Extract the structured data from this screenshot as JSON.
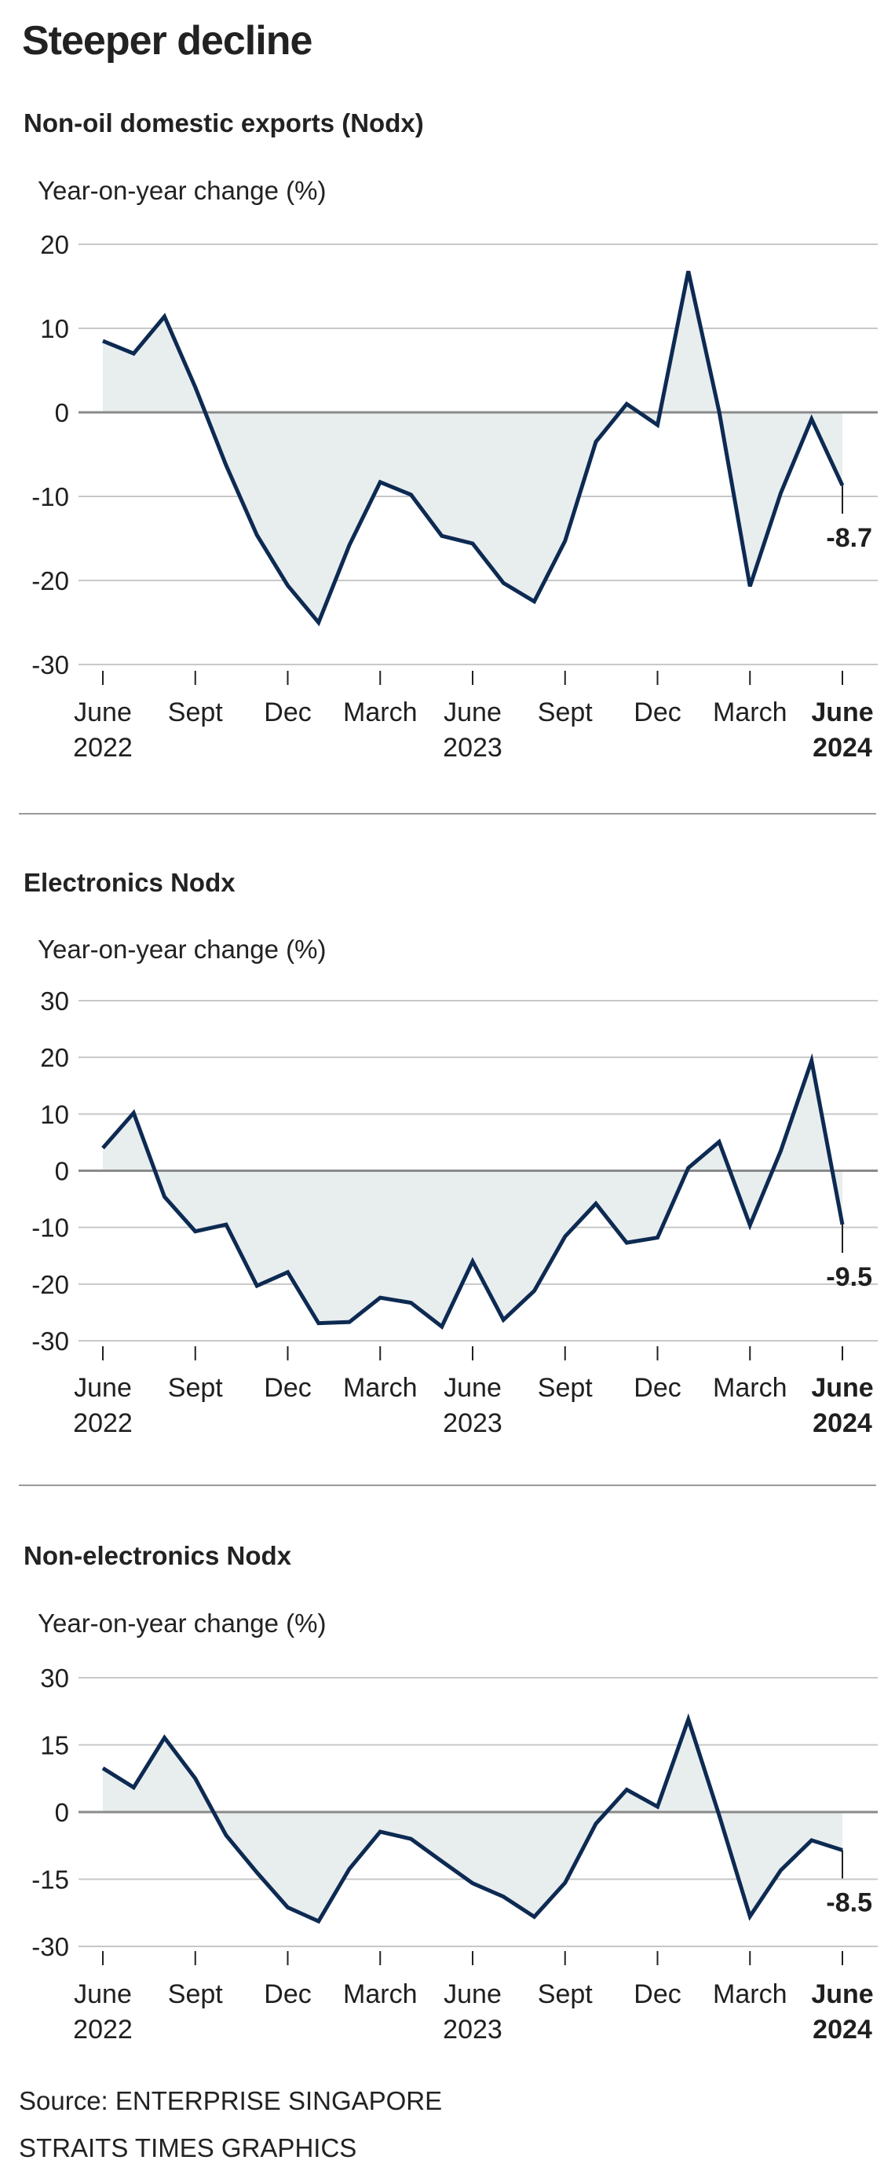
{
  "title": "Steeper decline",
  "source": "Source: ENTERPRISE SINGAPORE",
  "credit": "STRAITS TIMES GRAPHICS",
  "colors": {
    "line": "#0d2a52",
    "fill": "#e8edee",
    "grid": "#c8c8c8",
    "zero": "#8a8a8a"
  },
  "chart_data": [
    {
      "type": "area",
      "title": "Non-oil domestic exports (Nodx)",
      "ylabel": "Year-on-year change (%)",
      "ylim": [
        -30,
        20
      ],
      "yticks": [
        20,
        10,
        0,
        -10,
        -20,
        -30
      ],
      "x_ticks": [
        {
          "index": 0,
          "line1": "June",
          "line2": "2022",
          "bold": false
        },
        {
          "index": 3,
          "line1": "Sept",
          "line2": "",
          "bold": false
        },
        {
          "index": 6,
          "line1": "Dec",
          "line2": "",
          "bold": false
        },
        {
          "index": 9,
          "line1": "March",
          "line2": "",
          "bold": false
        },
        {
          "index": 12,
          "line1": "June",
          "line2": "2023",
          "bold": false
        },
        {
          "index": 15,
          "line1": "Sept",
          "line2": "",
          "bold": false
        },
        {
          "index": 18,
          "line1": "Dec",
          "line2": "",
          "bold": false
        },
        {
          "index": 21,
          "line1": "March",
          "line2": "",
          "bold": false
        },
        {
          "index": 24,
          "line1": "June",
          "line2": "2024",
          "bold": true
        }
      ],
      "values": [
        8.5,
        7.0,
        11.4,
        3.0,
        -6.3,
        -14.6,
        -20.6,
        -25.0,
        -15.8,
        -8.3,
        -9.8,
        -14.7,
        -15.6,
        -20.3,
        -22.5,
        -15.3,
        -3.5,
        1.0,
        -1.5,
        16.8,
        0.1,
        -20.7,
        -9.6,
        -0.8,
        -8.7
      ],
      "end_label": "-8.7"
    },
    {
      "type": "area",
      "title": "Electronics Nodx",
      "ylabel": "Year-on-year change (%)",
      "ylim": [
        -30,
        30
      ],
      "yticks": [
        30,
        20,
        10,
        0,
        -10,
        -20,
        -30
      ],
      "x_ticks": [
        {
          "index": 0,
          "line1": "June",
          "line2": "2022",
          "bold": false
        },
        {
          "index": 3,
          "line1": "Sept",
          "line2": "",
          "bold": false
        },
        {
          "index": 6,
          "line1": "Dec",
          "line2": "",
          "bold": false
        },
        {
          "index": 9,
          "line1": "March",
          "line2": "",
          "bold": false
        },
        {
          "index": 12,
          "line1": "June",
          "line2": "2023",
          "bold": false
        },
        {
          "index": 15,
          "line1": "Sept",
          "line2": "",
          "bold": false
        },
        {
          "index": 18,
          "line1": "Dec",
          "line2": "",
          "bold": false
        },
        {
          "index": 21,
          "line1": "March",
          "line2": "",
          "bold": false
        },
        {
          "index": 24,
          "line1": "June",
          "line2": "2024",
          "bold": true
        }
      ],
      "values": [
        4.0,
        10.2,
        -4.6,
        -10.7,
        -9.5,
        -20.3,
        -17.9,
        -26.9,
        -26.7,
        -22.4,
        -23.3,
        -27.5,
        -16.0,
        -26.3,
        -21.2,
        -11.6,
        -5.8,
        -12.7,
        -11.8,
        0.5,
        5.1,
        -9.6,
        3.5,
        19.4,
        -9.5
      ],
      "end_label": "-9.5"
    },
    {
      "type": "area",
      "title": "Non-electronics Nodx",
      "ylabel": "Year-on-year change (%)",
      "ylim": [
        -30,
        30
      ],
      "yticks": [
        30,
        15,
        0,
        -15,
        -30
      ],
      "x_ticks": [
        {
          "index": 0,
          "line1": "June",
          "line2": "2022",
          "bold": false
        },
        {
          "index": 3,
          "line1": "Sept",
          "line2": "",
          "bold": false
        },
        {
          "index": 6,
          "line1": "Dec",
          "line2": "",
          "bold": false
        },
        {
          "index": 9,
          "line1": "March",
          "line2": "",
          "bold": false
        },
        {
          "index": 12,
          "line1": "June",
          "line2": "2023",
          "bold": false
        },
        {
          "index": 15,
          "line1": "Sept",
          "line2": "",
          "bold": false
        },
        {
          "index": 18,
          "line1": "Dec",
          "line2": "",
          "bold": false
        },
        {
          "index": 21,
          "line1": "March",
          "line2": "",
          "bold": false
        },
        {
          "index": 24,
          "line1": "June",
          "line2": "2024",
          "bold": true
        }
      ],
      "values": [
        9.8,
        5.5,
        16.6,
        7.5,
        -5.2,
        -13.5,
        -21.3,
        -24.4,
        -12.7,
        -4.4,
        -6.0,
        -11.0,
        -15.9,
        -18.9,
        -23.4,
        -15.8,
        -2.6,
        5.0,
        1.2,
        20.7,
        -0.7,
        -23.3,
        -13.0,
        -6.3,
        -8.5
      ],
      "end_label": "-8.5"
    }
  ]
}
